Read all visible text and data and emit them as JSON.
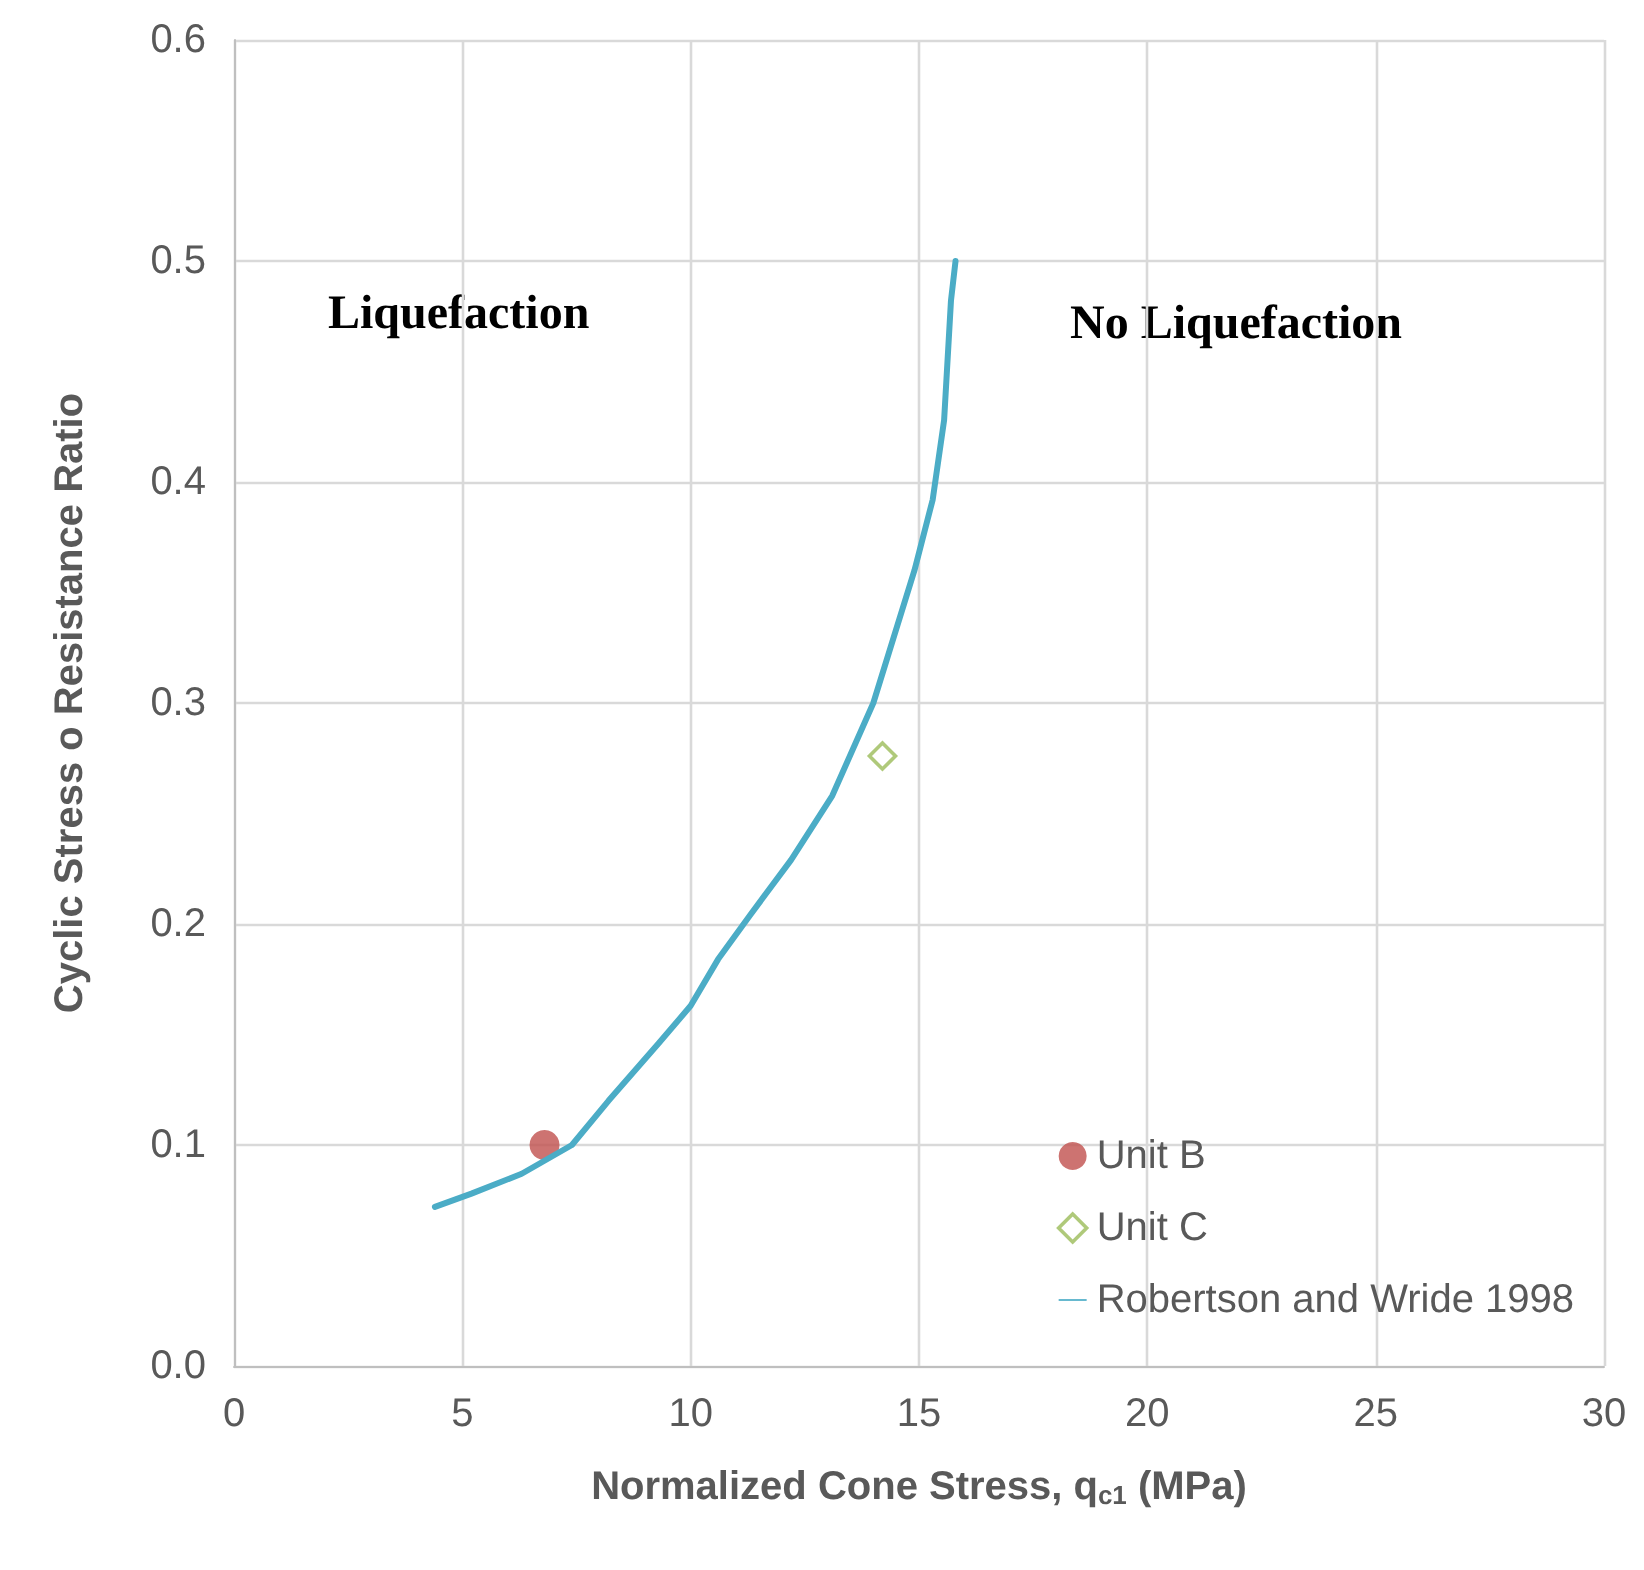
{
  "chart_data": {
    "type": "scatter",
    "xlabel": "Normalized Cone Stress, q$_{c1}$ (MPa)",
    "ylabel": "Cyclic Stress o Resistance Ratio",
    "xlim": [
      0,
      30
    ],
    "xticks": [
      0,
      5,
      10,
      15,
      20,
      25,
      30
    ],
    "ylim": [
      0,
      0.6
    ],
    "yticks": [
      {
        "value": 0,
        "label": "0.0"
      },
      {
        "value": 0.1,
        "label": "0.1"
      },
      {
        "value": 0.2,
        "label": "0.2"
      },
      {
        "value": 0.3,
        "label": "0.3"
      },
      {
        "value": 0.4,
        "label": "0.4"
      },
      {
        "value": 0.5,
        "label": "0.5"
      },
      {
        "value": 0.6,
        "label": "0.6"
      }
    ],
    "grid": true,
    "legend": "bottom right",
    "series": [
      {
        "name": "Unit B",
        "marker": "circle",
        "color": "#c0504d",
        "x": [
          6.8
        ],
        "values": [
          0.1
        ]
      },
      {
        "name": "Unit C",
        "marker": "diamond",
        "color": "#9bbb59",
        "x": [
          14.2
        ],
        "values": [
          0.276
        ]
      },
      {
        "name": "Robertson and Wride 1998",
        "type": "line",
        "marker": "none",
        "line_style": "solid",
        "color": "#4bacc6",
        "x": [
          4.4,
          5.2,
          6.3,
          7.4,
          8.2,
          9.3,
          10,
          10.6,
          11.3,
          12.2,
          13.1,
          14,
          14.9,
          15.3,
          15.55,
          15.7,
          15.8
        ],
        "values": [
          0.072,
          0.078,
          0.087,
          0.1,
          0.12,
          0.146,
          0.163,
          0.184,
          0.204,
          0.229,
          0.258,
          0.3,
          0.36,
          0.392,
          0.428,
          0.482,
          0.5
        ]
      }
    ],
    "annotations": [
      "Liquefaction",
      "No Liquefaction"
    ]
  }
}
